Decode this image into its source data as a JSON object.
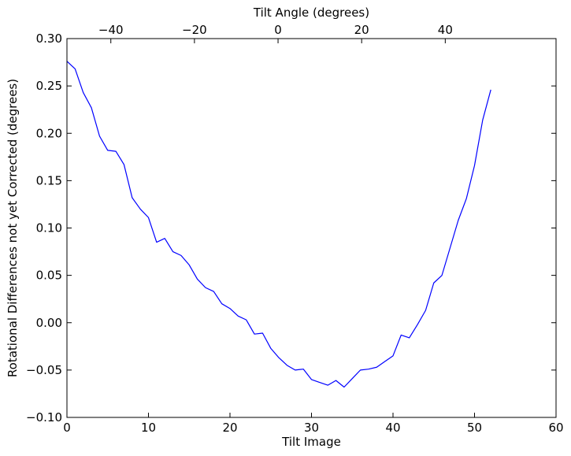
{
  "chart_data": {
    "type": "line",
    "xlabel": "Tilt Image",
    "ylabel": "Rotational Differences not yet Corrected (degrees)",
    "top_xlabel": "Tilt Angle (degrees)",
    "xlim": [
      0,
      60
    ],
    "ylim": [
      -0.1,
      0.3
    ],
    "top_xlim": [
      -50.5,
      66.5
    ],
    "x_ticks": [
      0,
      10,
      20,
      30,
      40,
      50,
      60
    ],
    "x_tick_labels": [
      "0",
      "10",
      "20",
      "30",
      "40",
      "50",
      "60"
    ],
    "y_ticks": [
      -0.1,
      -0.05,
      0.0,
      0.05,
      0.1,
      0.15,
      0.2,
      0.25,
      0.3
    ],
    "y_tick_labels": [
      "−0.10",
      "−0.05",
      "0.00",
      "0.05",
      "0.10",
      "0.15",
      "0.20",
      "0.25",
      "0.30"
    ],
    "top_x_ticks": [
      -40,
      -20,
      0,
      20,
      40
    ],
    "top_x_tick_labels": [
      "−40",
      "−20",
      "0",
      "20",
      "40"
    ],
    "grid": false,
    "series": [
      {
        "color": "#0000ff",
        "x": [
          0,
          1,
          2,
          3,
          4,
          5,
          6,
          7,
          8,
          9,
          10,
          11,
          12,
          13,
          14,
          15,
          16,
          17,
          18,
          19,
          20,
          21,
          22,
          23,
          24,
          25,
          26,
          27,
          28,
          29,
          30,
          31,
          32,
          33,
          34,
          35,
          36,
          37,
          38,
          39,
          40,
          41,
          42,
          43,
          44,
          45,
          46,
          47,
          48,
          49,
          50,
          51,
          52
        ],
        "y": [
          0.276,
          0.268,
          0.243,
          0.227,
          0.197,
          0.182,
          0.181,
          0.167,
          0.132,
          0.12,
          0.111,
          0.085,
          0.089,
          0.075,
          0.071,
          0.061,
          0.046,
          0.037,
          0.033,
          0.02,
          0.015,
          0.007,
          0.003,
          -0.012,
          -0.011,
          -0.027,
          -0.037,
          -0.045,
          -0.05,
          -0.049,
          -0.06,
          -0.063,
          -0.066,
          -0.061,
          -0.068,
          -0.059,
          -0.05,
          -0.049,
          -0.047,
          -0.041,
          -0.035,
          -0.013,
          -0.016,
          -0.002,
          0.013,
          0.042,
          0.05,
          0.079,
          0.108,
          0.131,
          0.166,
          0.214,
          0.246
        ]
      }
    ]
  }
}
